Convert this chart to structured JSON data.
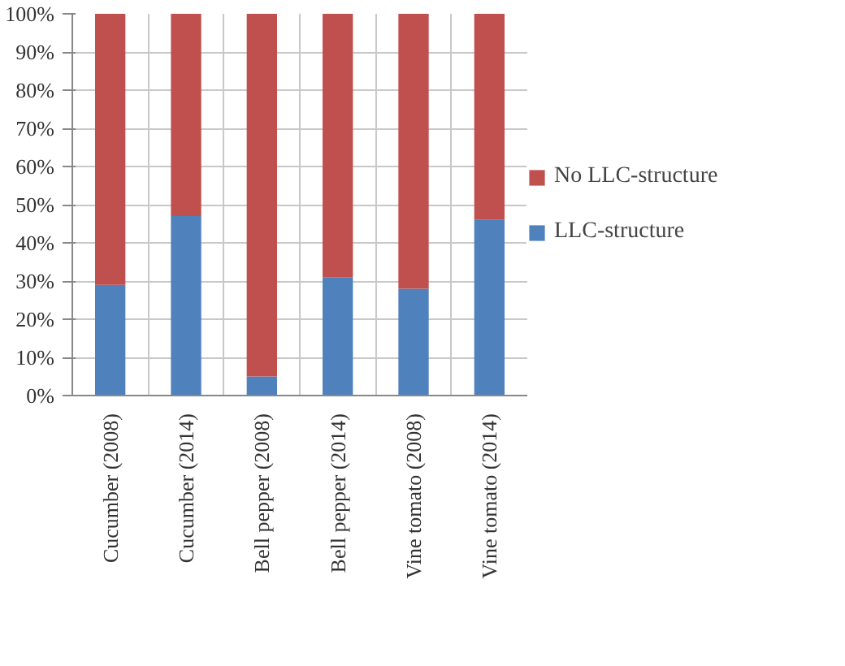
{
  "chart_data": {
    "type": "bar",
    "stacked": true,
    "categories": [
      "Cucumber (2008)",
      "Cucumber (2014)",
      "Bell pepper (2008)",
      "Bell pepper (2014)",
      "Vine tomato (2008)",
      "Vine tomato (2014)"
    ],
    "series": [
      {
        "name": "LLC-structure",
        "color": "#4f81bd",
        "values": [
          29,
          47,
          5,
          31,
          28,
          46
        ]
      },
      {
        "name": "No LLC-structure",
        "color": "#c0504d",
        "values": [
          71,
          53,
          95,
          69,
          72,
          54
        ]
      }
    ],
    "ylim": [
      0,
      100
    ],
    "yticks": [
      {
        "value": 0,
        "label": "0%"
      },
      {
        "value": 10,
        "label": "10%"
      },
      {
        "value": 20,
        "label": "20%"
      },
      {
        "value": 30,
        "label": "30%"
      },
      {
        "value": 40,
        "label": "40%"
      },
      {
        "value": 50,
        "label": "50%"
      },
      {
        "value": 60,
        "label": "60%"
      },
      {
        "value": 70,
        "label": "70%"
      },
      {
        "value": 80,
        "label": "80%"
      },
      {
        "value": 90,
        "label": "90%"
      },
      {
        "value": 100,
        "label": "100%"
      }
    ],
    "grid": true,
    "legend": "right"
  }
}
